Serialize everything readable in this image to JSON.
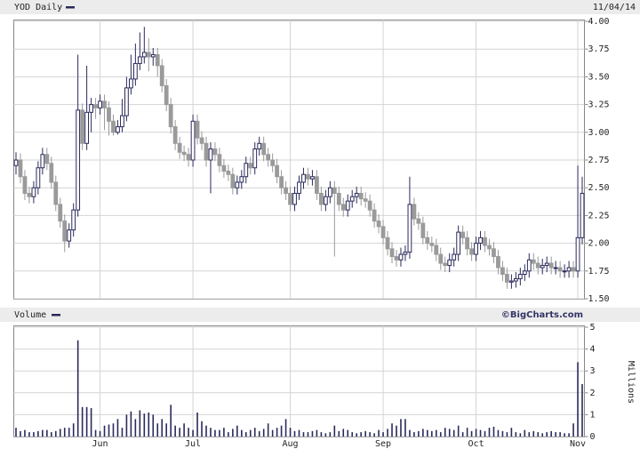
{
  "chart_data": [
    {
      "type": "candlestick",
      "title": "YOD Daily",
      "date": "11/04/14",
      "open": [
        2.7,
        2.75,
        2.6,
        2.45,
        2.42,
        2.5,
        2.68,
        2.8,
        2.72,
        2.55,
        2.35,
        2.2,
        2.02,
        2.12,
        2.3,
        3.2,
        2.9,
        3.18,
        3.25,
        3.22,
        3.28,
        3.22,
        3.1,
        3.0,
        3.05,
        3.15,
        3.4,
        3.48,
        3.62,
        3.68,
        3.72,
        3.68,
        3.7,
        3.6,
        3.42,
        3.25,
        3.05,
        2.9,
        2.82,
        2.8,
        2.75,
        3.1,
        2.95,
        2.9,
        2.75,
        2.85,
        2.8,
        2.7,
        2.65,
        2.62,
        2.5,
        2.55,
        2.6,
        2.72,
        2.68,
        2.85,
        2.9,
        2.8,
        2.75,
        2.7,
        2.6,
        2.5,
        2.45,
        2.35,
        2.45,
        2.55,
        2.62,
        2.58,
        2.6,
        2.45,
        2.35,
        2.42,
        2.5,
        2.45,
        2.35,
        2.3,
        2.38,
        2.42,
        2.45,
        2.4,
        2.38,
        2.3,
        2.2,
        2.15,
        2.05,
        1.95,
        1.88,
        1.85,
        1.9,
        1.92,
        2.35,
        2.22,
        2.18,
        2.05,
        2.0,
        1.98,
        1.9,
        1.82,
        1.8,
        1.85,
        1.9,
        2.1,
        2.05,
        1.95,
        1.9,
        2.0,
        2.05,
        1.98,
        1.95,
        1.88,
        1.78,
        1.72,
        1.65,
        1.66,
        1.68,
        1.72,
        1.75,
        1.85,
        1.82,
        1.78,
        1.8,
        1.82,
        1.78,
        1.78,
        1.75,
        1.75,
        1.78,
        1.75,
        2.05
      ],
      "high": [
        2.82,
        2.81,
        2.66,
        2.51,
        2.56,
        2.74,
        2.86,
        2.86,
        2.78,
        2.61,
        2.41,
        2.26,
        2.18,
        2.36,
        3.7,
        3.26,
        3.6,
        3.31,
        3.31,
        3.34,
        3.34,
        3.28,
        3.16,
        3.11,
        3.3,
        3.5,
        3.7,
        3.8,
        3.9,
        3.95,
        3.85,
        3.76,
        3.76,
        3.66,
        3.48,
        3.31,
        3.11,
        2.96,
        2.88,
        2.86,
        3.16,
        3.16,
        3.01,
        2.96,
        2.91,
        2.91,
        2.86,
        2.76,
        2.71,
        2.68,
        2.61,
        2.66,
        2.78,
        2.78,
        2.91,
        2.96,
        2.96,
        2.86,
        2.81,
        2.76,
        2.66,
        2.56,
        2.51,
        2.51,
        2.61,
        2.68,
        2.68,
        2.66,
        2.66,
        2.51,
        2.48,
        2.56,
        2.56,
        2.51,
        2.41,
        2.44,
        2.48,
        2.51,
        2.51,
        2.46,
        2.44,
        2.36,
        2.26,
        2.21,
        2.11,
        2.01,
        1.94,
        1.96,
        1.98,
        2.6,
        2.41,
        2.28,
        2.24,
        2.11,
        2.06,
        2.04,
        1.96,
        1.88,
        1.91,
        1.96,
        2.16,
        2.16,
        2.11,
        2.01,
        2.06,
        2.11,
        2.11,
        2.04,
        2.01,
        1.94,
        1.84,
        1.78,
        1.72,
        1.74,
        1.78,
        1.81,
        1.91,
        1.91,
        1.88,
        1.86,
        1.88,
        1.88,
        1.84,
        1.84,
        1.81,
        1.84,
        1.84,
        2.7,
        2.6
      ],
      "low": [
        2.62,
        2.54,
        2.39,
        2.36,
        2.36,
        2.44,
        2.62,
        2.66,
        2.49,
        2.29,
        2.14,
        1.92,
        1.96,
        2.06,
        2.24,
        2.84,
        2.84,
        3.0,
        3.12,
        3.16,
        3.02,
        2.97,
        2.97,
        2.98,
        3.0,
        3.1,
        3.34,
        3.42,
        3.56,
        3.62,
        3.55,
        3.6,
        3.5,
        3.36,
        3.19,
        2.99,
        2.84,
        2.76,
        2.74,
        2.69,
        2.69,
        2.89,
        2.84,
        2.69,
        2.45,
        2.74,
        2.64,
        2.59,
        2.56,
        2.44,
        2.44,
        2.49,
        2.54,
        2.62,
        2.62,
        2.79,
        2.74,
        2.69,
        2.64,
        2.54,
        2.44,
        2.39,
        2.29,
        2.29,
        2.39,
        2.49,
        2.52,
        2.52,
        2.39,
        2.29,
        2.29,
        2.36,
        1.88,
        2.29,
        2.24,
        2.24,
        2.32,
        2.36,
        2.34,
        2.32,
        2.24,
        2.14,
        2.09,
        1.99,
        1.89,
        1.82,
        1.79,
        1.79,
        1.84,
        1.86,
        2.16,
        2.12,
        1.99,
        1.94,
        1.92,
        1.84,
        1.76,
        1.74,
        1.74,
        1.79,
        1.84,
        1.99,
        1.89,
        1.84,
        1.84,
        1.94,
        1.92,
        1.89,
        1.82,
        1.72,
        1.66,
        1.59,
        1.59,
        1.6,
        1.62,
        1.66,
        1.69,
        1.76,
        1.72,
        1.72,
        1.74,
        1.72,
        1.72,
        1.69,
        1.69,
        1.69,
        1.69,
        1.69,
        1.99
      ],
      "close": [
        2.75,
        2.6,
        2.45,
        2.42,
        2.5,
        2.68,
        2.8,
        2.72,
        2.55,
        2.35,
        2.2,
        2.02,
        2.12,
        2.3,
        3.2,
        2.9,
        3.18,
        3.25,
        3.22,
        3.28,
        3.22,
        3.1,
        3.0,
        3.05,
        3.15,
        3.4,
        3.48,
        3.62,
        3.68,
        3.72,
        3.68,
        3.7,
        3.6,
        3.42,
        3.25,
        3.05,
        2.9,
        2.82,
        2.8,
        2.75,
        3.1,
        2.95,
        2.9,
        2.75,
        2.85,
        2.8,
        2.7,
        2.65,
        2.62,
        2.5,
        2.55,
        2.6,
        2.72,
        2.68,
        2.85,
        2.9,
        2.8,
        2.75,
        2.7,
        2.6,
        2.5,
        2.45,
        2.35,
        2.45,
        2.55,
        2.62,
        2.58,
        2.6,
        2.45,
        2.35,
        2.42,
        2.5,
        2.45,
        2.35,
        2.3,
        2.38,
        2.42,
        2.45,
        2.4,
        2.38,
        2.3,
        2.2,
        2.15,
        2.05,
        1.95,
        1.88,
        1.85,
        1.9,
        1.92,
        2.35,
        2.22,
        2.18,
        2.05,
        2.0,
        1.98,
        1.9,
        1.82,
        1.8,
        1.85,
        1.9,
        2.1,
        2.05,
        1.95,
        1.9,
        2.0,
        2.05,
        1.98,
        1.95,
        1.88,
        1.78,
        1.72,
        1.65,
        1.66,
        1.68,
        1.72,
        1.75,
        1.85,
        1.82,
        1.78,
        1.8,
        1.82,
        1.78,
        1.78,
        1.75,
        1.75,
        1.78,
        1.75,
        2.05,
        2.45
      ],
      "up_color": "#ffffff",
      "down_color": "#9a9a9a",
      "edge_color": "#2a2a5c",
      "ylim": [
        1.5,
        4.0
      ],
      "yticks": [
        {
          "value": 1.5,
          "label": "1.50"
        },
        {
          "value": 1.75,
          "label": "1.75"
        },
        {
          "value": 2,
          "label": "2.00"
        },
        {
          "value": 2.25,
          "label": "2.25"
        },
        {
          "value": 2.5,
          "label": "2.50"
        },
        {
          "value": 2.75,
          "label": "2.75"
        },
        {
          "value": 3,
          "label": "3.00"
        },
        {
          "value": 3.25,
          "label": "3.25"
        },
        {
          "value": 3.5,
          "label": "3.50"
        },
        {
          "value": 3.75,
          "label": "3.75"
        },
        {
          "value": 4,
          "label": "4.00"
        }
      ],
      "grid": true
    },
    {
      "type": "bar",
      "title": "Volume",
      "source": "©BigCharts.com",
      "ylabel": "Millions",
      "categories": [
        null,
        null,
        null,
        null,
        null,
        null,
        null,
        null,
        null,
        null,
        null,
        null,
        null,
        null,
        null,
        null,
        null,
        null,
        null,
        "Jun",
        null,
        null,
        null,
        null,
        null,
        null,
        null,
        null,
        null,
        null,
        null,
        null,
        null,
        null,
        null,
        null,
        null,
        null,
        null,
        null,
        "Jul",
        null,
        null,
        null,
        null,
        null,
        null,
        null,
        null,
        null,
        null,
        null,
        null,
        null,
        null,
        null,
        null,
        null,
        null,
        null,
        null,
        null,
        "Aug",
        null,
        null,
        null,
        null,
        null,
        null,
        null,
        null,
        null,
        null,
        null,
        null,
        null,
        null,
        null,
        null,
        null,
        null,
        null,
        null,
        "Sep",
        null,
        null,
        null,
        null,
        null,
        null,
        null,
        null,
        null,
        null,
        null,
        null,
        null,
        null,
        null,
        null,
        null,
        null,
        null,
        null,
        "Oct",
        null,
        null,
        null,
        null,
        null,
        null,
        null,
        null,
        null,
        null,
        null,
        null,
        null,
        null,
        null,
        null,
        null,
        null,
        null,
        null,
        null,
        null,
        "Nov",
        null
      ],
      "values": [
        0.4,
        0.25,
        0.3,
        0.2,
        0.2,
        0.25,
        0.3,
        0.3,
        0.2,
        0.25,
        0.35,
        0.4,
        0.4,
        0.6,
        4.4,
        1.35,
        1.35,
        1.3,
        0.3,
        0.25,
        0.5,
        0.55,
        0.6,
        0.8,
        0.4,
        1.0,
        1.15,
        0.8,
        1.2,
        1.05,
        1.1,
        1.0,
        0.6,
        0.8,
        0.6,
        1.45,
        0.5,
        0.4,
        0.6,
        0.4,
        0.3,
        1.1,
        0.7,
        0.5,
        0.4,
        0.3,
        0.3,
        0.4,
        0.2,
        0.35,
        0.5,
        0.3,
        0.2,
        0.3,
        0.4,
        0.25,
        0.35,
        0.6,
        0.3,
        0.4,
        0.5,
        0.8,
        0.4,
        0.25,
        0.3,
        0.2,
        0.2,
        0.25,
        0.3,
        0.2,
        0.15,
        0.2,
        0.5,
        0.25,
        0.35,
        0.3,
        0.2,
        0.15,
        0.2,
        0.25,
        0.2,
        0.15,
        0.3,
        0.2,
        0.35,
        0.6,
        0.5,
        0.8,
        0.8,
        0.3,
        0.2,
        0.25,
        0.35,
        0.3,
        0.25,
        0.3,
        0.2,
        0.4,
        0.35,
        0.3,
        0.5,
        0.2,
        0.4,
        0.25,
        0.35,
        0.3,
        0.25,
        0.4,
        0.45,
        0.3,
        0.25,
        0.2,
        0.4,
        0.2,
        0.15,
        0.3,
        0.2,
        0.25,
        0.2,
        0.15,
        0.2,
        0.25,
        0.2,
        0.2,
        0.15,
        0.15,
        0.6,
        3.4,
        2.4
      ],
      "color": "#2a2a5c",
      "ylim": [
        0,
        5
      ],
      "yticks": [
        0,
        1,
        2,
        3,
        4,
        5
      ],
      "grid": true
    }
  ]
}
